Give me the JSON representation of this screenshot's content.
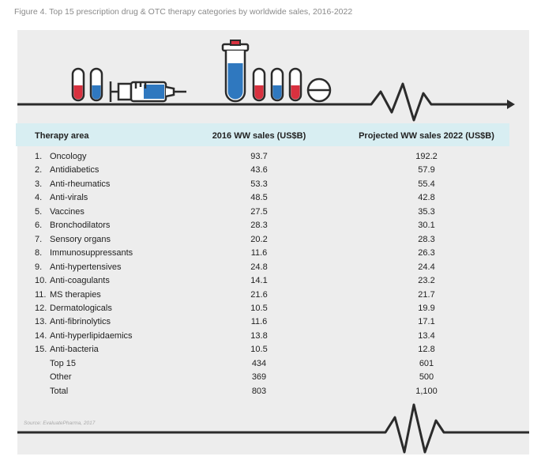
{
  "figure_title": "Figure 4. Top 15 prescription drug & OTC therapy categories by worldwide sales, 2016-2022",
  "headers": {
    "area": "Therapy area",
    "sales_2016": "2016 WW sales (US$B)",
    "sales_2022": "Projected WW sales 2022 (US$B)"
  },
  "rows": [
    {
      "num": "1.",
      "name": "Oncology",
      "v2016": "93.7",
      "v2022": "192.2"
    },
    {
      "num": "2.",
      "name": "Antidiabetics",
      "v2016": "43.6",
      "v2022": "57.9"
    },
    {
      "num": "3.",
      "name": "Anti-rheumatics",
      "v2016": "53.3",
      "v2022": "55.4"
    },
    {
      "num": "4.",
      "name": "Anti-virals",
      "v2016": "48.5",
      "v2022": "42.8"
    },
    {
      "num": "5.",
      "name": "Vaccines",
      "v2016": "27.5",
      "v2022": "35.3"
    },
    {
      "num": "6.",
      "name": "Bronchodilators",
      "v2016": "28.3",
      "v2022": "30.1"
    },
    {
      "num": "7.",
      "name": "Sensory organs",
      "v2016": "20.2",
      "v2022": "28.3"
    },
    {
      "num": "8.",
      "name": "Immunosuppressants",
      "v2016": "11.6",
      "v2022": "26.3"
    },
    {
      "num": "9.",
      "name": "Anti-hypertensives",
      "v2016": "24.8",
      "v2022": "24.4"
    },
    {
      "num": "10.",
      "name": "Anti-coagulants",
      "v2016": "14.1",
      "v2022": "23.2"
    },
    {
      "num": "11.",
      "name": "MS therapies",
      "v2016": "21.6",
      "v2022": "21.7"
    },
    {
      "num": "12.",
      "name": "Dermatologicals",
      "v2016": "10.5",
      "v2022": "19.9"
    },
    {
      "num": "13.",
      "name": "Anti-fibrinolytics",
      "v2016": "11.6",
      "v2022": "17.1"
    },
    {
      "num": "14.",
      "name": "Anti-hyperlipidaemics",
      "v2016": "13.8",
      "v2022": "13.4"
    },
    {
      "num": "15.",
      "name": "Anti-bacteria",
      "v2016": "10.5",
      "v2022": "12.8"
    },
    {
      "num": "",
      "name": "Top 15",
      "v2016": "434",
      "v2022": "601"
    },
    {
      "num": "",
      "name": "Other",
      "v2016": "369",
      "v2022": "500"
    },
    {
      "num": "",
      "name": "Total",
      "v2016": "803",
      "v2022": "1,100"
    }
  ],
  "source": "Source: EvaluatePharma, 2017",
  "colors": {
    "accent_band": "#d8eef2",
    "red_vial": "#d8313f",
    "blue_vial": "#2f78bf",
    "line": "#2b2b2b"
  },
  "icons": [
    "vial-red-icon",
    "vial-blue-icon",
    "syringe-icon",
    "test-tube-icon",
    "pill-icon",
    "heartbeat-line-icon"
  ]
}
